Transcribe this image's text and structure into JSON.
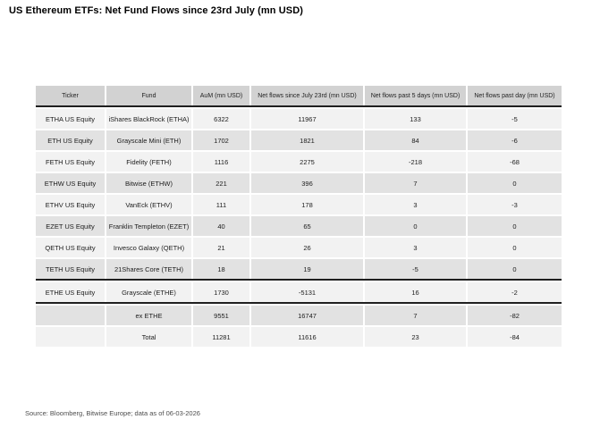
{
  "title": "US Ethereum ETFs: Net Fund Flows since 23rd July (mn USD)",
  "source_note": "Source: Bloomberg, Bitwise Europe; data as of  06-03-2026",
  "colors": {
    "header_bg": "#d2d2d2",
    "row_light": "#f2f2f2",
    "row_dark": "#e2e2e2",
    "divider": "#1f1f1f",
    "title_text": "#000000",
    "source_text": "#4d4d4d"
  },
  "chart_data": {
    "type": "table",
    "columns": [
      "Ticker",
      "Fund",
      "AuM (mn USD)",
      "Net flows since July 23rd (mn USD)",
      "Net flows past 5 days (mn USD)",
      "Net flows past day (mn USD)"
    ],
    "rows": [
      {
        "cells": [
          "ETHA US Equity",
          "iShares BlackRock (ETHA)",
          "6322",
          "11967",
          "133",
          "-5"
        ],
        "divider_after": false
      },
      {
        "cells": [
          "ETH US Equity",
          "Grayscale Mini (ETH)",
          "1702",
          "1821",
          "84",
          "-6"
        ],
        "divider_after": false
      },
      {
        "cells": [
          "FETH US Equity",
          "Fidelity (FETH)",
          "1116",
          "2275",
          "-218",
          "-68"
        ],
        "divider_after": false
      },
      {
        "cells": [
          "ETHW US Equity",
          "Bitwise (ETHW)",
          "221",
          "396",
          "7",
          "0"
        ],
        "divider_after": false
      },
      {
        "cells": [
          "ETHV US Equity",
          "VanEck (ETHV)",
          "111",
          "178",
          "3",
          "-3"
        ],
        "divider_after": false
      },
      {
        "cells": [
          "EZET US Equity",
          "Franklin Templeton (EZET)",
          "40",
          "65",
          "0",
          "0"
        ],
        "divider_after": false
      },
      {
        "cells": [
          "QETH US Equity",
          "Invesco Galaxy (QETH)",
          "21",
          "26",
          "3",
          "0"
        ],
        "divider_after": false
      },
      {
        "cells": [
          "TETH US Equity",
          "21Shares Core (TETH)",
          "18",
          "19",
          "-5",
          "0"
        ],
        "divider_after": true
      },
      {
        "cells": [
          "ETHE US Equity",
          "Grayscale (ETHE)",
          "1730",
          "-5131",
          "16",
          "-2"
        ],
        "divider_after": true
      },
      {
        "cells": [
          "",
          "ex ETHE",
          "9551",
          "16747",
          "7",
          "-82"
        ],
        "divider_after": false
      },
      {
        "cells": [
          "",
          "Total",
          "11281",
          "11616",
          "23",
          "-84"
        ],
        "divider_after": false
      }
    ]
  }
}
